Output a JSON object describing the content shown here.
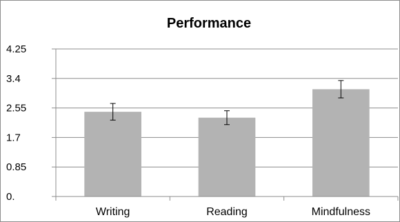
{
  "chart_data": {
    "type": "bar",
    "title": "Performance",
    "xlabel": "",
    "ylabel": "",
    "categories": [
      "Writing",
      "Reading",
      "Mindfulness"
    ],
    "values": [
      2.44,
      2.27,
      3.09
    ],
    "error": [
      0.24,
      0.2,
      0.25
    ],
    "ylim": [
      0,
      4.25
    ],
    "yticks": [
      0,
      0.85,
      1.7,
      2.55,
      3.4,
      4.25
    ],
    "ytick_labels": [
      "0.",
      "0.85",
      "1.7",
      "2.55",
      "3.4",
      "4.25"
    ],
    "grid": true,
    "legend": "none",
    "bar_color": "#b3b3b3",
    "grid_color": "#8c8c8c"
  }
}
